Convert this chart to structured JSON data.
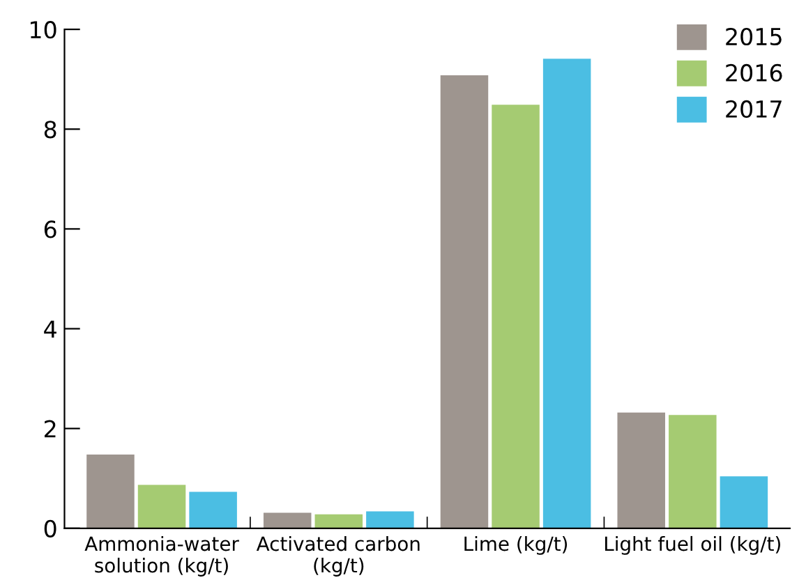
{
  "chart_data": {
    "type": "bar",
    "categories": [
      "Ammonia-water\nsolution (kg/t)",
      "Activated carbon\n(kg/t)",
      "Lime (kg/t)",
      "Light fuel oil (kg/t)"
    ],
    "series": [
      {
        "name": "2015",
        "color": "#9e958f",
        "values": [
          1.48,
          0.31,
          9.08,
          2.32
        ]
      },
      {
        "name": "2016",
        "color": "#a5cb72",
        "values": [
          0.87,
          0.28,
          8.49,
          2.27
        ]
      },
      {
        "name": "2017",
        "color": "#4bbee3",
        "values": [
          0.73,
          0.34,
          9.41,
          1.04
        ]
      }
    ],
    "ylim": [
      0,
      10
    ],
    "yticks": [
      0,
      2,
      4,
      6,
      8,
      10
    ],
    "grid": false,
    "legend": "top right"
  }
}
